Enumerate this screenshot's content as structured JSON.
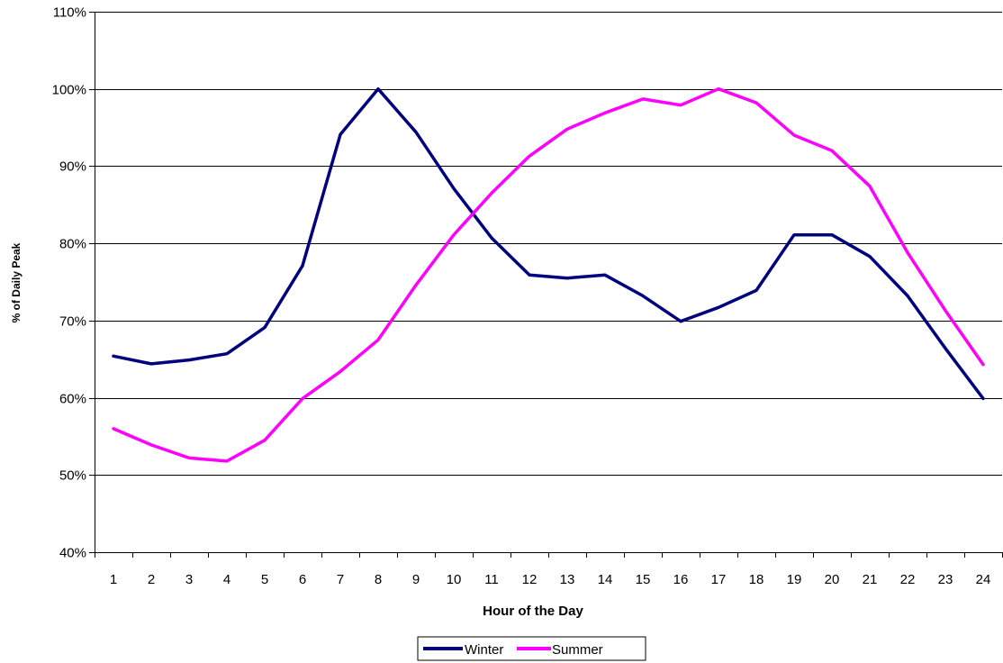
{
  "chart_data": {
    "type": "line",
    "xlabel": "Hour of the Day",
    "ylabel": "% of Daily Peak",
    "x": [
      1,
      2,
      3,
      4,
      5,
      6,
      7,
      8,
      9,
      10,
      11,
      12,
      13,
      14,
      15,
      16,
      17,
      18,
      19,
      20,
      21,
      22,
      23,
      24
    ],
    "x_tick_labels": [
      "1",
      "2",
      "3",
      "4",
      "5",
      "6",
      "7",
      "8",
      "9",
      "10",
      "11",
      "12",
      "13",
      "14",
      "15",
      "16",
      "17",
      "18",
      "19",
      "20",
      "21",
      "22",
      "23",
      "24"
    ],
    "ylim": [
      40,
      110
    ],
    "y_ticks": [
      40,
      50,
      60,
      70,
      80,
      90,
      100,
      110
    ],
    "y_tick_labels": [
      "40%",
      "50%",
      "60%",
      "70%",
      "80%",
      "90%",
      "100%",
      "110%"
    ],
    "grid": true,
    "legend_position": "bottom",
    "series": [
      {
        "name": "Winter",
        "color": "#000080",
        "values": [
          65.4,
          64.4,
          64.9,
          65.7,
          69.1,
          77.1,
          94.1,
          100.0,
          94.4,
          87.1,
          80.7,
          75.9,
          75.5,
          75.9,
          73.2,
          69.9,
          71.7,
          73.9,
          81.1,
          81.1,
          78.3,
          73.2,
          66.4,
          59.9
        ]
      },
      {
        "name": "Summer",
        "color": "#ff00ff",
        "values": [
          56.0,
          53.9,
          52.2,
          51.8,
          54.5,
          59.9,
          63.4,
          67.5,
          74.6,
          81.1,
          86.5,
          91.3,
          94.8,
          96.9,
          98.7,
          97.9,
          100.0,
          98.2,
          94.0,
          92.0,
          87.4,
          78.8,
          71.3,
          64.3
        ]
      }
    ]
  }
}
